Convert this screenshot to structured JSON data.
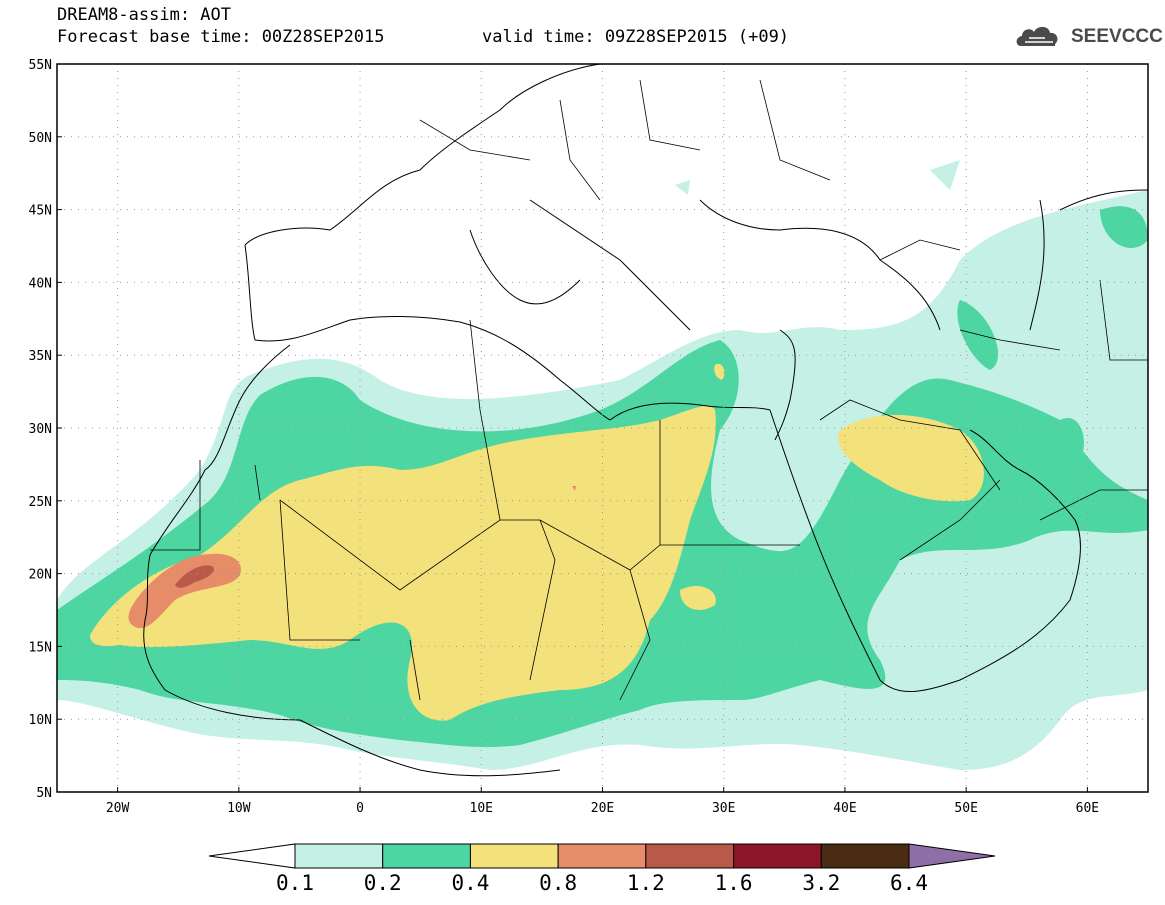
{
  "header": {
    "title": "DREAM8-assim: AOT",
    "base_time": "Forecast base time: 00Z28SEP2015",
    "valid_time": "valid time: 09Z28SEP2015 (+09)"
  },
  "logo": {
    "text": "SEEVCCC",
    "icon": "cloud-icon"
  },
  "map": {
    "lon_range": [
      -25,
      65
    ],
    "lat_range": [
      5,
      55
    ],
    "lat_labels": [
      "55N",
      "50N",
      "45N",
      "40N",
      "35N",
      "30N",
      "25N",
      "20N",
      "15N",
      "10N",
      "5N"
    ],
    "lon_labels": [
      "20W",
      "10W",
      "0",
      "10E",
      "20E",
      "30E",
      "40E",
      "50E",
      "60E"
    ],
    "grid": true
  },
  "colorbar": {
    "colors": [
      "#ffffff",
      "#c4f0e6",
      "#4dd6a2",
      "#f3e27c",
      "#e68c68",
      "#b9594a",
      "#8b1628",
      "#4a2c12",
      "#8f6fa8"
    ],
    "labels": [
      "0.1",
      "0.2",
      "0.4",
      "0.8",
      "1.2",
      "1.6",
      "3.2",
      "6.4"
    ]
  }
}
